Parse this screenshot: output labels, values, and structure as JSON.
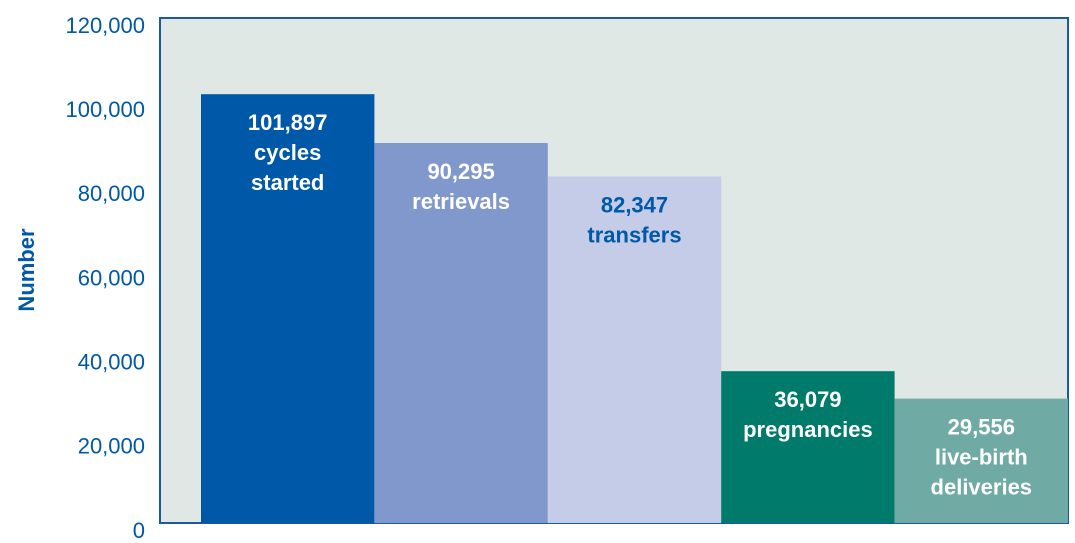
{
  "chart_data": {
    "type": "bar",
    "ylabel": "Number",
    "categories": [
      "cycles started",
      "retrievals",
      "transfers",
      "pregnancies",
      "live-birth deliveries"
    ],
    "values": [
      101897,
      90295,
      82347,
      36079,
      29556
    ],
    "value_labels": [
      "101,897",
      "90,295",
      "82,347",
      "36,079",
      "29,556"
    ],
    "colors": [
      "#0058a8",
      "#8098cc",
      "#c4cce8",
      "#007a6a",
      "#70aaa4"
    ],
    "ylim": [
      0,
      120000
    ],
    "yticks": [
      0,
      {
        "value": 20000,
        "label": "20,000"
      },
      {
        "value": 40000,
        "label": "40,000"
      },
      {
        "value": 60000,
        "label": "60,000"
      },
      {
        "value": 80000,
        "label": "80,000"
      },
      {
        "value": 100000,
        "label": "100,000"
      },
      {
        "value": 120000,
        "label": "120,000"
      }
    ],
    "grid": false
  }
}
